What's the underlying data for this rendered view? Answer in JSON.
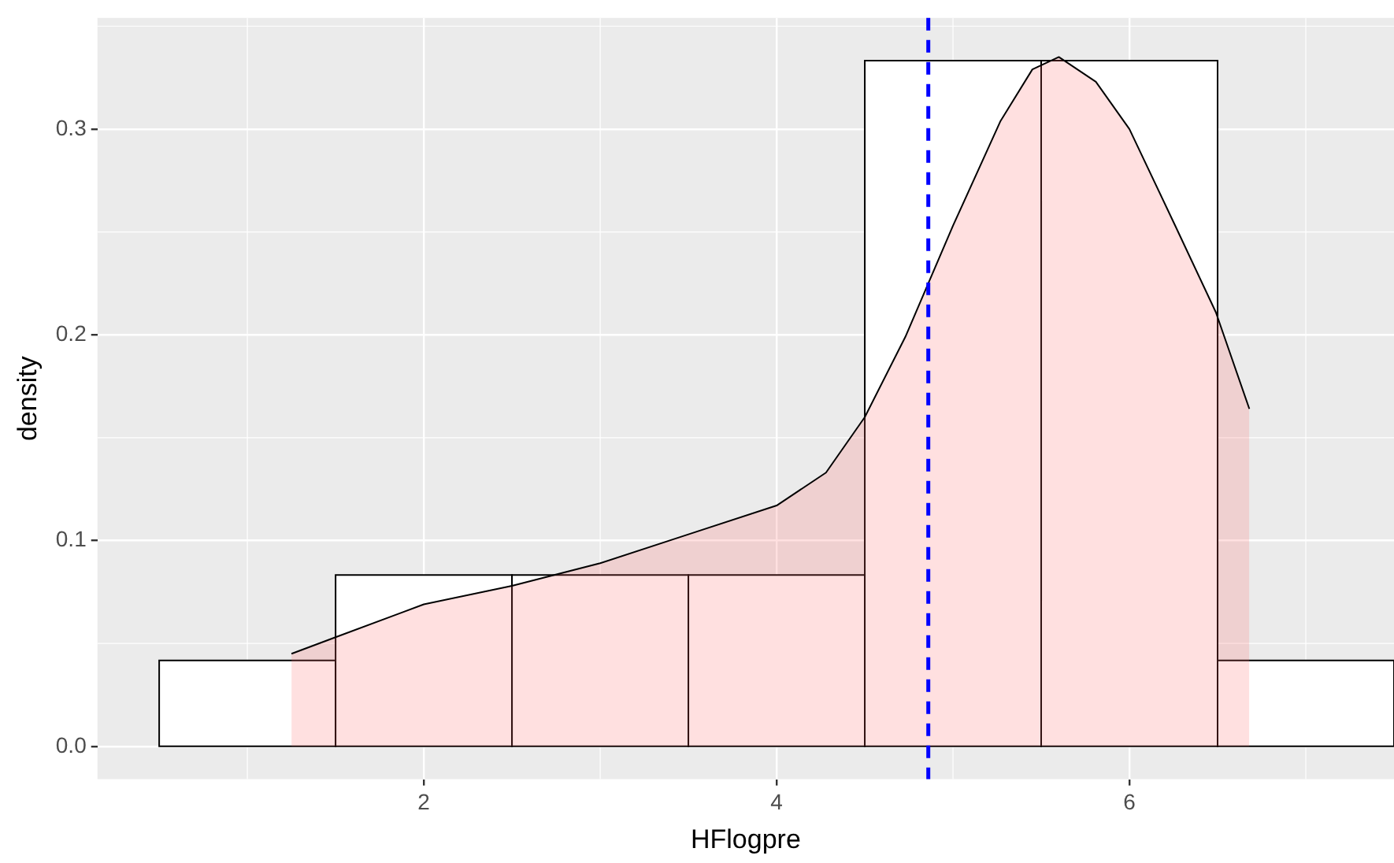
{
  "chart_data": {
    "type": "histogram",
    "xlabel": "HFlogpre",
    "ylabel": "density",
    "xlim": [
      0.15,
      7.5
    ],
    "ylim": [
      -0.016,
      0.354
    ],
    "xticks": [
      2,
      4,
      6
    ],
    "yticks": [
      {
        "value": 0,
        "label": "0.0"
      },
      {
        "value": 0.1,
        "label": "0.1"
      },
      {
        "value": 0.2,
        "label": "0.2"
      },
      {
        "value": 0.3,
        "label": "0.3"
      }
    ],
    "grid": true,
    "series": [
      {
        "color": "#ffffff",
        "bins": [
          0.5,
          1.5,
          2.5,
          3.5,
          4.5,
          5.5,
          6.5,
          7.5
        ],
        "values": [
          0.0417,
          0.0833,
          0.0833,
          0.0833,
          0.3333,
          0.3333,
          0.0417
        ]
      },
      {
        "type": "area",
        "color": "#ff6666",
        "x": [
          1.25,
          1.5,
          2,
          2.5,
          3,
          3.5,
          4,
          4.28,
          4.5,
          4.73,
          5,
          5.27,
          5.45,
          5.6,
          5.81,
          6,
          6.26,
          6.49,
          6.68
        ],
        "values": [
          0.045,
          0.053,
          0.069,
          0.078,
          0.089,
          0.103,
          0.117,
          0.133,
          0.16,
          0.199,
          0.253,
          0.304,
          0.329,
          0.335,
          0.323,
          0.3,
          0.253,
          0.211,
          0.164
        ]
      }
    ],
    "ref_lines": [
      {
        "axis": "x",
        "value": 4.86,
        "color": "#0000ff",
        "line_style": "dashed"
      }
    ]
  }
}
